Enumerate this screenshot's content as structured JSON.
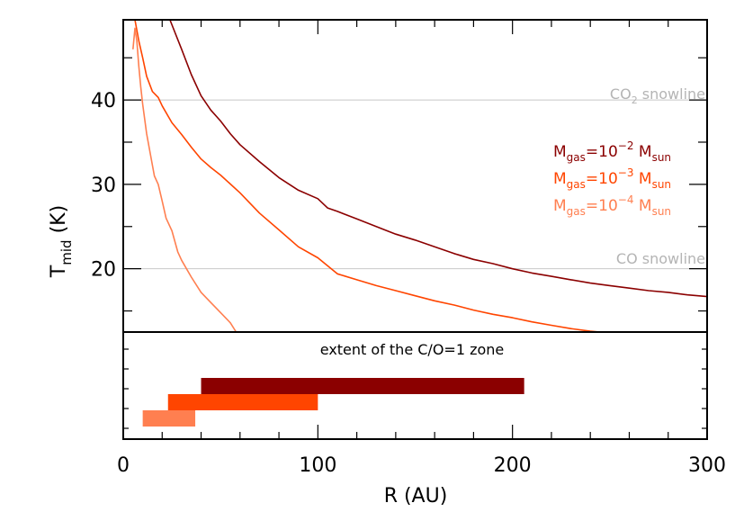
{
  "chart_data": [
    {
      "type": "line",
      "ylabel": {
        "main": "T",
        "sub": "mid",
        "rest": " (K)"
      },
      "xlim": [
        0,
        300
      ],
      "ylim": [
        12.5,
        49.5
      ],
      "y_ticks": [
        20,
        30,
        40
      ],
      "grid": false,
      "legend_placement": "right",
      "reference_lines": [
        {
          "y": 40,
          "label_main": "CO",
          "label_sub": "2",
          "label_rest": " snowline"
        },
        {
          "y": 20,
          "label_main": "CO snowline",
          "label_sub": "",
          "label_rest": ""
        }
      ],
      "series": [
        {
          "name": "Mgas=10^-2 Msun",
          "legend": {
            "a": "M",
            "a_sub": "gas",
            "b": "=10",
            "b_sup": "−2",
            "c": " M",
            "c_sub": "sun"
          },
          "color": "#8b0000",
          "x": [
            24,
            30,
            35,
            40,
            45,
            50,
            55,
            60,
            70,
            80,
            90,
            100,
            105,
            110,
            120,
            130,
            140,
            150,
            160,
            170,
            180,
            190,
            200,
            210,
            220,
            230,
            240,
            250,
            260,
            270,
            280,
            290,
            300
          ],
          "y": [
            49.5,
            46.0,
            43.0,
            40.5,
            38.8,
            37.5,
            36.0,
            34.7,
            32.7,
            30.8,
            29.3,
            28.3,
            27.2,
            26.8,
            25.9,
            25.0,
            24.1,
            23.4,
            22.6,
            21.8,
            21.1,
            20.6,
            20.0,
            19.5,
            19.1,
            18.7,
            18.3,
            18.0,
            17.7,
            17.4,
            17.2,
            16.9,
            16.7
          ]
        },
        {
          "name": "Mgas=10^-3 Msun",
          "legend": {
            "a": "M",
            "a_sub": "gas",
            "b": "=10",
            "b_sup": "−3",
            "c": " M",
            "c_sub": "sun"
          },
          "color": "#ff4500",
          "x": [
            6,
            8,
            10,
            12,
            15,
            18,
            20,
            25,
            30,
            35,
            40,
            45,
            50,
            60,
            70,
            80,
            90,
            100,
            110,
            120,
            130,
            140,
            150,
            160,
            170,
            180,
            190,
            200,
            210,
            220,
            230,
            240,
            245
          ],
          "y": [
            49.5,
            47.0,
            45.0,
            42.8,
            41.0,
            40.3,
            39.3,
            37.3,
            35.9,
            34.4,
            33.0,
            32.0,
            31.1,
            29.0,
            26.6,
            24.6,
            22.6,
            21.3,
            19.4,
            18.7,
            18.0,
            17.4,
            16.8,
            16.2,
            15.7,
            15.1,
            14.6,
            14.2,
            13.7,
            13.3,
            12.9,
            12.6,
            12.5
          ]
        },
        {
          "name": "Mgas=10^-4 Msun",
          "legend": {
            "a": "M",
            "a_sub": "gas",
            "b": "=10",
            "b_sup": "−4",
            "c": " M",
            "c_sub": "sun"
          },
          "color": "#ff7f50",
          "x": [
            5,
            6,
            7,
            8,
            9,
            10,
            12,
            14,
            16,
            18,
            20,
            22,
            25,
            28,
            30,
            35,
            40,
            45,
            50,
            55,
            58
          ],
          "y": [
            46.0,
            48.5,
            47.0,
            44.0,
            41.5,
            39.5,
            36.0,
            33.5,
            31.0,
            30.0,
            28.0,
            26.0,
            24.5,
            22.0,
            21.0,
            19.0,
            17.2,
            16.0,
            14.8,
            13.6,
            12.5
          ]
        }
      ]
    },
    {
      "type": "bar",
      "orientation": "horizontal",
      "title": "extent of the C/O=1 zone",
      "xlabel": "R (AU)",
      "xlim": [
        0,
        300
      ],
      "x_ticks": [
        0,
        100,
        200,
        300
      ],
      "bars": [
        {
          "series": "Mgas=10^-2 Msun",
          "start": 40,
          "end": 206,
          "color": "#8b0000"
        },
        {
          "series": "Mgas=10^-3 Msun",
          "start": 23,
          "end": 100,
          "color": "#ff4500"
        },
        {
          "series": "Mgas=10^-4 Msun",
          "start": 10,
          "end": 37,
          "color": "#ff7f50"
        }
      ]
    }
  ]
}
